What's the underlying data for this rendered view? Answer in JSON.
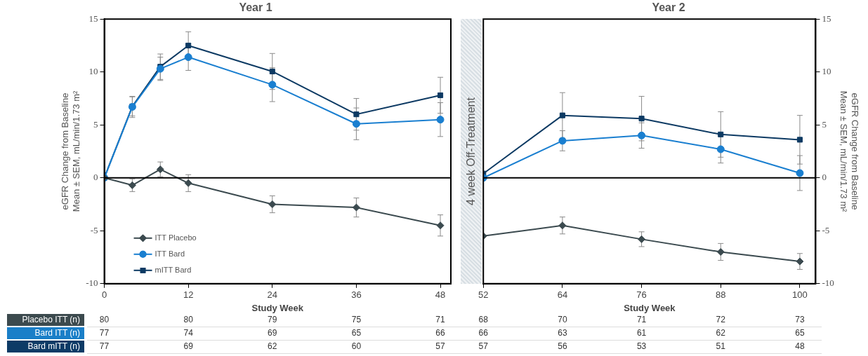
{
  "chart_data": [
    {
      "type": "line",
      "title": "Year 1",
      "xlabel": "Study Week",
      "ylabel": "eGFR Change from Baseline\nMean ± SEM, mL/min/1.73 m²",
      "xlim": [
        0,
        49.5
      ],
      "xticks": [
        0,
        12,
        24,
        36,
        48
      ],
      "ylim": [
        -10,
        15
      ],
      "yticks": [
        -10,
        -5,
        0,
        5,
        10,
        15
      ],
      "grid": false,
      "legend": "bottom left",
      "ref_lines": [
        {
          "axis": "y",
          "value": 0,
          "color": "#000000"
        }
      ],
      "series": [
        {
          "name": "ITT Placebo",
          "color": "#3b4a4f",
          "marker": "diamond",
          "x": [
            0,
            4,
            8,
            12,
            24,
            36,
            48
          ],
          "values": [
            0,
            -0.7,
            0.8,
            -0.5,
            -2.5,
            -2.8,
            -4.5
          ],
          "errors": [
            null,
            0.6,
            0.7,
            0.8,
            0.8,
            0.9,
            1.0
          ]
        },
        {
          "name": "ITT Bard",
          "color": "#1a7fd0",
          "marker": "circle",
          "x": [
            0,
            4,
            8,
            12,
            24,
            36,
            48
          ],
          "values": [
            0,
            6.7,
            10.3,
            11.4,
            8.8,
            5.1,
            5.5
          ],
          "errors": [
            null,
            1.0,
            1.1,
            1.25,
            1.6,
            1.5,
            1.6
          ]
        },
        {
          "name": "mITT Bard",
          "color": "#0d3a63",
          "marker": "square",
          "x": [
            0,
            4,
            8,
            12,
            24,
            36,
            48
          ],
          "values": [
            0,
            6.75,
            10.5,
            12.5,
            10.05,
            6.0,
            7.8
          ],
          "errors": [
            null,
            0.9,
            1.2,
            1.3,
            1.7,
            1.5,
            1.7
          ]
        }
      ]
    },
    {
      "type": "line",
      "title": "Year 2",
      "xlabel": "Study Week",
      "y2label": "eGFR Change from Baseline\nMean ± SEM, mL/min/1.73 m²",
      "xlim": [
        52,
        102.4
      ],
      "xticks": [
        52,
        64,
        76,
        88,
        100
      ],
      "y2lim": [
        -10,
        15
      ],
      "y2ticks": [
        -10,
        -5,
        0,
        5,
        10,
        15
      ],
      "grid": false,
      "ref_lines": [
        {
          "axis": "y2",
          "value": 0,
          "color": "#000000"
        }
      ],
      "annotations": [
        "4 week Off-Treatment"
      ],
      "series": [
        {
          "color": "#3b4a4f",
          "marker": "diamond",
          "axis": "y2",
          "x": [
            52,
            64,
            76,
            88,
            100
          ],
          "values": [
            -5.5,
            -4.5,
            -5.8,
            -7.0,
            -7.9
          ],
          "errors": [
            null,
            0.8,
            0.7,
            0.8,
            0.75
          ]
        },
        {
          "color": "#1a7fd0",
          "marker": "circle",
          "axis": "y2",
          "x": [
            52,
            64,
            76,
            88,
            100
          ],
          "values": [
            0,
            3.5,
            4.0,
            2.7,
            0.45
          ],
          "errors": [
            null,
            0.95,
            1.2,
            1.3,
            1.65
          ]
        },
        {
          "color": "#0d3a63",
          "marker": "square",
          "axis": "y2",
          "x": [
            52,
            64,
            76,
            88,
            100
          ],
          "values": [
            0.4,
            5.9,
            5.6,
            4.1,
            3.6
          ],
          "errors": [
            null,
            2.15,
            2.1,
            2.15,
            2.3
          ]
        }
      ]
    },
    {
      "type": "heatmap",
      "categories": [
        null,
        null,
        null,
        null,
        null,
        null,
        null,
        null,
        null,
        null
      ],
      "y_categories": [
        "Placebo ITT (n)",
        "Bard ITT (n)",
        "Bard mITT (n)"
      ],
      "colors": [
        "#3c4a4e",
        "#1a7fc8",
        "#0d3b66"
      ],
      "cells": [
        [
          80,
          80,
          79,
          75,
          71,
          68,
          70,
          71,
          72,
          73
        ],
        [
          77,
          74,
          69,
          65,
          66,
          66,
          63,
          61,
          62,
          65
        ],
        [
          77,
          69,
          62,
          60,
          57,
          57,
          56,
          53,
          51,
          48
        ]
      ],
      "cell_labels": [
        [
          "80",
          "80",
          "79",
          "75",
          "71",
          "68",
          "70",
          "71",
          "72",
          "73"
        ],
        [
          "77",
          "74",
          "69",
          "65",
          "66",
          "66",
          "63",
          "61",
          "62",
          "65"
        ],
        [
          "77",
          "69",
          "62",
          "60",
          "57",
          "57",
          "56",
          "53",
          "51",
          "48"
        ]
      ]
    }
  ]
}
